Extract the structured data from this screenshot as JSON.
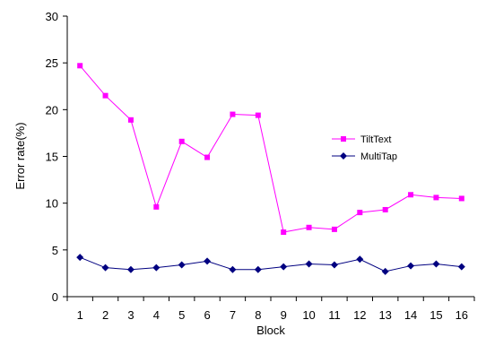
{
  "chart_data": {
    "type": "line",
    "title": "",
    "xlabel": "Block",
    "ylabel": "Error rate(%)",
    "x": [
      1,
      2,
      3,
      4,
      5,
      6,
      7,
      8,
      9,
      10,
      11,
      12,
      13,
      14,
      15,
      16
    ],
    "ylim": [
      0,
      30
    ],
    "yticks": [
      0,
      5,
      10,
      15,
      20,
      25,
      30
    ],
    "grid": false,
    "legend_position": "right",
    "series": [
      {
        "name": "TiltText",
        "color": "#ff00ff",
        "marker": "square",
        "values": [
          24.7,
          21.5,
          18.9,
          9.6,
          16.6,
          14.9,
          19.5,
          19.4,
          6.9,
          7.4,
          7.2,
          9.0,
          9.3,
          10.9,
          10.6,
          10.5
        ]
      },
      {
        "name": "MultiTap",
        "color": "#000080",
        "marker": "diamond",
        "values": [
          4.2,
          3.1,
          2.9,
          3.1,
          3.4,
          3.8,
          2.9,
          2.9,
          3.2,
          3.5,
          3.4,
          4.0,
          2.7,
          3.3,
          3.5,
          3.2
        ]
      }
    ]
  }
}
